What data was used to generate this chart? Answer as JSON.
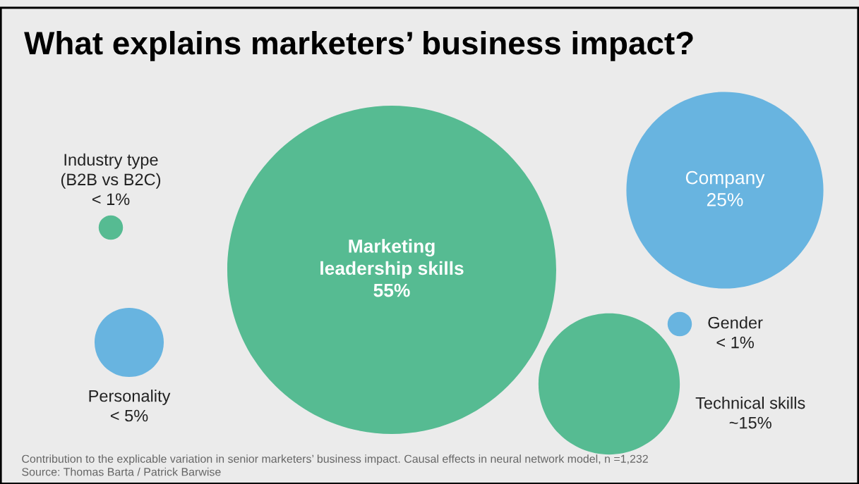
{
  "chart_data": {
    "type": "other",
    "title": "What explains marketers’ business impact?",
    "categories": [
      "Industry type\n(B2B vs B2C)",
      "Personality",
      "Marketing\nleadership skills",
      "Company",
      "Gender",
      "Technical skills"
    ],
    "colors": [
      "#56bb92",
      "#68b4e0",
      "#56bb92",
      "#68b4e0",
      "#68b4e0",
      "#56bb92"
    ],
    "values": [
      1,
      5,
      55,
      25,
      1,
      15
    ],
    "value_labels": [
      "< 1%",
      "< 5%",
      "55%",
      "25%",
      "< 1%",
      "~15%"
    ],
    "annotations": [
      "Contribution to the explicable variation in senior marketers’ business impact. Causal effects in neural network model, n =1,232",
      "Source: Thomas Barta / Patrick Barwise"
    ]
  }
}
